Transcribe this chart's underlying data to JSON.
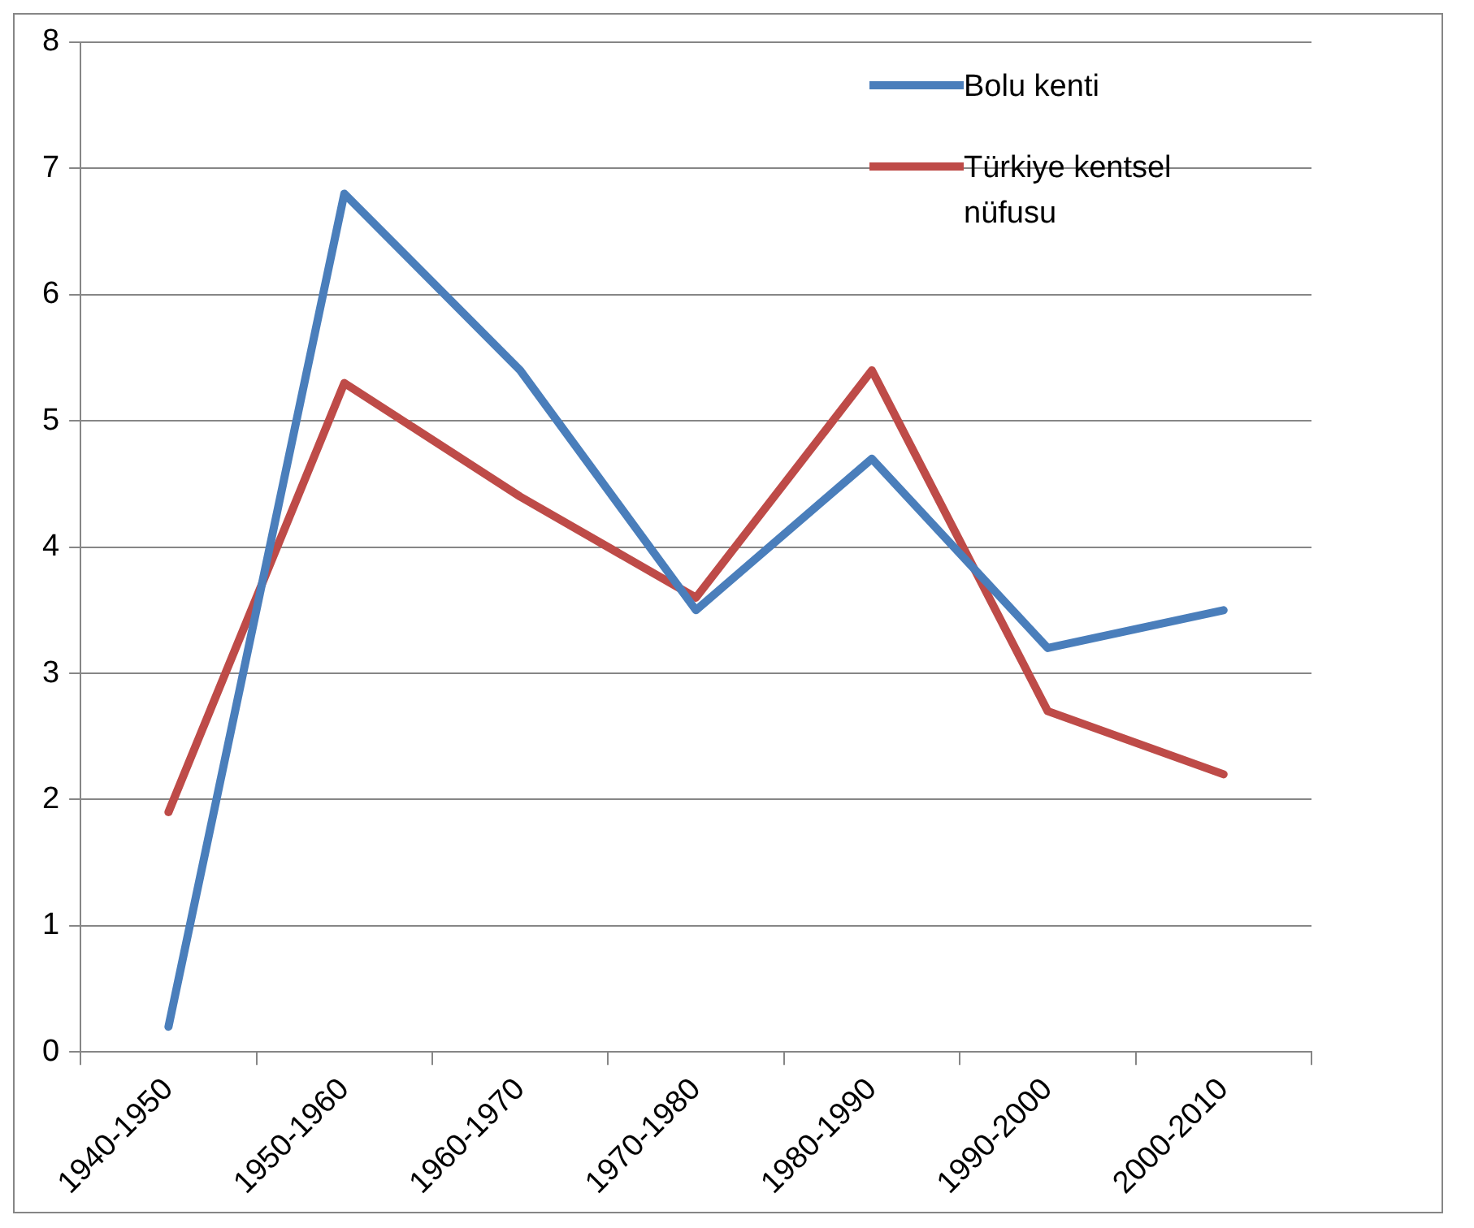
{
  "chart_data": {
    "type": "line",
    "categories": [
      "1940-1950",
      "1950-1960",
      "1960-1970",
      "1970-1980",
      "1980-1990",
      "1990-2000",
      "2000-2010"
    ],
    "series": [
      {
        "name": "Bolu kenti",
        "color": "#4a7ebb",
        "values": [
          0.2,
          6.8,
          5.4,
          3.5,
          4.7,
          3.2,
          3.5
        ]
      },
      {
        "name": "Türkiye kentsel nüfusu",
        "color": "#be4b48",
        "values": [
          1.9,
          5.3,
          4.4,
          3.6,
          5.4,
          2.7,
          2.2
        ]
      }
    ],
    "ylim": [
      0,
      8
    ],
    "yticks": [
      0,
      1,
      2,
      3,
      4,
      5,
      6,
      7,
      8
    ],
    "grid": "y",
    "legend": "top right",
    "marker": "none",
    "line_style": "solid"
  }
}
